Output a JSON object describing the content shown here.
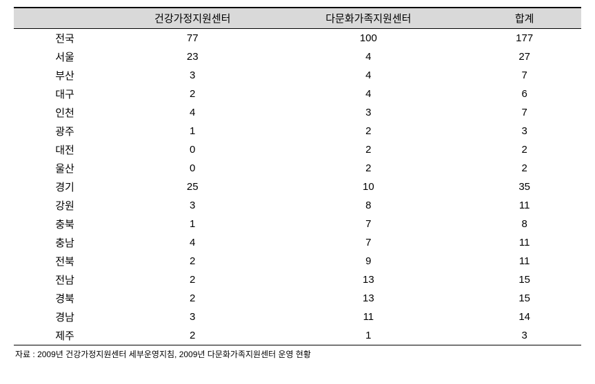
{
  "table": {
    "columns": [
      "",
      "건강가정지원센터",
      "다문화가족지원센터",
      "합계"
    ],
    "rows": [
      [
        "전국",
        "77",
        "100",
        "177"
      ],
      [
        "서울",
        "23",
        "4",
        "27"
      ],
      [
        "부산",
        "3",
        "4",
        "7"
      ],
      [
        "대구",
        "2",
        "4",
        "6"
      ],
      [
        "인천",
        "4",
        "3",
        "7"
      ],
      [
        "광주",
        "1",
        "2",
        "3"
      ],
      [
        "대전",
        "0",
        "2",
        "2"
      ],
      [
        "울산",
        "0",
        "2",
        "2"
      ],
      [
        "경기",
        "25",
        "10",
        "35"
      ],
      [
        "강원",
        "3",
        "8",
        "11"
      ],
      [
        "충북",
        "1",
        "7",
        "8"
      ],
      [
        "충남",
        "4",
        "7",
        "11"
      ],
      [
        "전북",
        "2",
        "9",
        "11"
      ],
      [
        "전남",
        "2",
        "13",
        "15"
      ],
      [
        "경북",
        "2",
        "13",
        "15"
      ],
      [
        "경남",
        "3",
        "11",
        "14"
      ],
      [
        "제주",
        "2",
        "1",
        "3"
      ]
    ]
  },
  "footnote": "자료 : 2009년 건강가정지원센터 세부운영지침, 2009년 다문화가족지원센터 운영 현황"
}
